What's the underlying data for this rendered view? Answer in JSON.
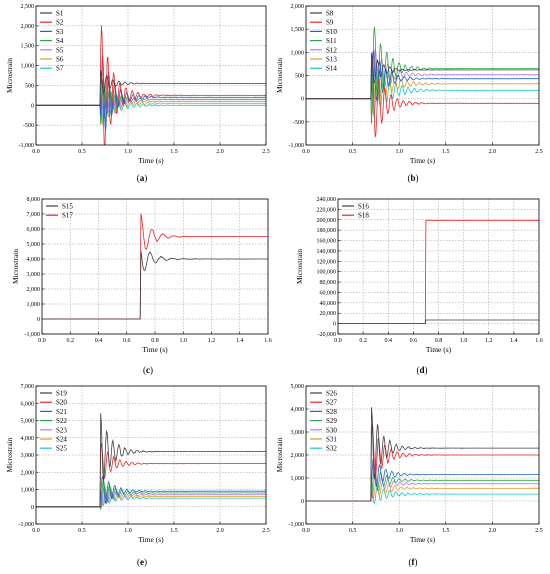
{
  "colors": {
    "S1": "#404040",
    "S2": "#e8262a",
    "S3": "#1f63c8",
    "S4": "#27a845",
    "S5": "#b57be3",
    "S6": "#e59a20",
    "S7": "#1cc7c7",
    "S8": "#404040",
    "S9": "#e8262a",
    "S10": "#1f63c8",
    "S11": "#27a845",
    "S12": "#b57be3",
    "S13": "#e59a20",
    "S14": "#1cc7c7",
    "S15": "#404040",
    "S17": "#e8262a",
    "S16": "#404040",
    "S18": "#e8262a",
    "S19": "#404040",
    "S20": "#e8262a",
    "S21": "#1f63c8",
    "S22": "#27a845",
    "S23": "#b57be3",
    "S24": "#e59a20",
    "S25": "#1cc7c7",
    "S26": "#404040",
    "S27": "#e8262a",
    "S28": "#1f63c8",
    "S29": "#27a845",
    "S30": "#b57be3",
    "S31": "#e59a20",
    "S32": "#1cc7c7"
  },
  "chart_data": [
    {
      "panel": "(a)",
      "type": "line",
      "xlabel": "Time (s)",
      "ylabel": "Microstrain",
      "xlim": [
        0,
        2.5
      ],
      "ylim": [
        -1000,
        2500
      ],
      "grid": true,
      "legend": "top-left",
      "xticks": [
        "0.0",
        "0.5",
        "1.0",
        "1.5",
        "2.0",
        "2.5"
      ],
      "yticks": [
        "-1,000",
        "-500",
        "0",
        "500",
        "1,000",
        "1,500",
        "2,000",
        "2,500"
      ],
      "series": [
        {
          "name": "S1",
          "onset": 0.7,
          "peak": 900,
          "final": 550
        },
        {
          "name": "S2",
          "onset": 0.7,
          "peak": 2300,
          "final": 250
        },
        {
          "name": "S3",
          "onset": 0.7,
          "peak": 1500,
          "final": 200
        },
        {
          "name": "S4",
          "onset": 0.7,
          "peak": 800,
          "final": 150
        },
        {
          "name": "S5",
          "onset": 0.7,
          "peak": 600,
          "final": 100
        },
        {
          "name": "S6",
          "onset": 0.7,
          "peak": 700,
          "final": 50
        },
        {
          "name": "S7",
          "onset": 0.7,
          "peak": 500,
          "final": 0
        }
      ]
    },
    {
      "panel": "(b)",
      "type": "line",
      "xlabel": "Time (s)",
      "ylabel": "Microstrain",
      "xlim": [
        0,
        2.5
      ],
      "ylim": [
        -1000,
        2000
      ],
      "grid": true,
      "legend": "top-left",
      "xticks": [
        "0.0",
        "0.5",
        "1.0",
        "1.5",
        "2.0",
        "2.5"
      ],
      "yticks": [
        "-1,000",
        "-500",
        "0",
        "500",
        "1,000",
        "1,500",
        "2,000"
      ],
      "series": [
        {
          "name": "S8",
          "onset": 0.7,
          "peak": 1000,
          "final": 620
        },
        {
          "name": "S9",
          "onset": 0.7,
          "peak": 1000,
          "final": -100
        },
        {
          "name": "S10",
          "onset": 0.7,
          "peak": 1200,
          "final": 430
        },
        {
          "name": "S11",
          "onset": 0.7,
          "peak": 1850,
          "final": 650
        },
        {
          "name": "S12",
          "onset": 0.7,
          "peak": 1300,
          "final": 520
        },
        {
          "name": "S13",
          "onset": 0.7,
          "peak": 1100,
          "final": 320
        },
        {
          "name": "S14",
          "onset": 0.7,
          "peak": 900,
          "final": 180
        }
      ]
    },
    {
      "panel": "(c)",
      "type": "line",
      "xlabel": "Time (s)",
      "ylabel": "Microstrain",
      "xlim": [
        0,
        1.6
      ],
      "ylim": [
        -1000,
        8000
      ],
      "grid": true,
      "legend": "top-left",
      "xticks": [
        "0.0",
        "0.2",
        "0.4",
        "0.6",
        "0.8",
        "1.0",
        "1.2",
        "1.4",
        "1.6"
      ],
      "yticks": [
        "-1,000",
        "0",
        "1,000",
        "2,000",
        "3,000",
        "4,000",
        "5,000",
        "6,000",
        "7,000",
        "8,000"
      ],
      "series": [
        {
          "name": "S15",
          "onset": 0.7,
          "peak": 5100,
          "final": 4000
        },
        {
          "name": "S17",
          "onset": 0.7,
          "peak": 7000,
          "final": 5500
        }
      ]
    },
    {
      "panel": "(d)",
      "type": "line",
      "xlabel": "Time (s)",
      "ylabel": "Microstrain",
      "xlim": [
        0,
        1.6
      ],
      "ylim": [
        -20000,
        240000
      ],
      "grid": true,
      "legend": "top-left",
      "xticks": [
        "0.0",
        "0.2",
        "0.4",
        "0.6",
        "0.8",
        "1.0",
        "1.2",
        "1.4",
        "1.6"
      ],
      "yticks": [
        "-20,000",
        "0",
        "20,000",
        "40,000",
        "60,000",
        "80,000",
        "100,000",
        "120,000",
        "140,000",
        "160,000",
        "180,000",
        "200,000",
        "220,000",
        "240,000"
      ],
      "series": [
        {
          "name": "S16",
          "onset": 0.7,
          "peak": 7000,
          "final": 7000
        },
        {
          "name": "S18",
          "onset": 0.7,
          "peak": 199000,
          "final": 199000
        }
      ]
    },
    {
      "panel": "(e)",
      "type": "line",
      "xlabel": "Time (s)",
      "ylabel": "Microstrain",
      "xlim": [
        0,
        2.5
      ],
      "ylim": [
        -1000,
        7000
      ],
      "grid": true,
      "legend": "top-left",
      "xticks": [
        "0.0",
        "0.5",
        "1.0",
        "1.5",
        "2.0",
        "2.5"
      ],
      "yticks": [
        "-1,000",
        "0",
        "1,000",
        "2,000",
        "3,000",
        "4,000",
        "5,000",
        "6,000",
        "7,000"
      ],
      "series": [
        {
          "name": "S19",
          "onset": 0.7,
          "peak": 5500,
          "final": 3200
        },
        {
          "name": "S20",
          "onset": 0.7,
          "peak": 3800,
          "final": 2500
        },
        {
          "name": "S21",
          "onset": 0.7,
          "peak": 2000,
          "final": 900
        },
        {
          "name": "S22",
          "onset": 0.7,
          "peak": 1800,
          "final": 800
        },
        {
          "name": "S23",
          "onset": 0.7,
          "peak": 1500,
          "final": 700
        },
        {
          "name": "S24",
          "onset": 0.7,
          "peak": 1200,
          "final": 600
        },
        {
          "name": "S25",
          "onset": 0.7,
          "peak": 1000,
          "final": 500
        }
      ]
    },
    {
      "panel": "(f)",
      "type": "line",
      "xlabel": "Time (s)",
      "ylabel": "Microstrain",
      "xlim": [
        0,
        2.5
      ],
      "ylim": [
        -1000,
        5000
      ],
      "grid": true,
      "legend": "top-left",
      "xticks": [
        "0.0",
        "0.5",
        "1.0",
        "1.5",
        "2.0",
        "2.5"
      ],
      "yticks": [
        "-1,000",
        "0",
        "1,000",
        "2,000",
        "3,000",
        "4,000",
        "5,000"
      ],
      "series": [
        {
          "name": "S26",
          "onset": 0.7,
          "peak": 4200,
          "final": 2300
        },
        {
          "name": "S27",
          "onset": 0.7,
          "peak": 3500,
          "final": 2000
        },
        {
          "name": "S28",
          "onset": 0.7,
          "peak": 2000,
          "final": 1150
        },
        {
          "name": "S29",
          "onset": 0.7,
          "peak": 1600,
          "final": 900
        },
        {
          "name": "S30",
          "onset": 0.7,
          "peak": 1400,
          "final": 750
        },
        {
          "name": "S31",
          "onset": 0.7,
          "peak": 1100,
          "final": 550
        },
        {
          "name": "S32",
          "onset": 0.7,
          "peak": 800,
          "final": 300
        }
      ]
    }
  ]
}
